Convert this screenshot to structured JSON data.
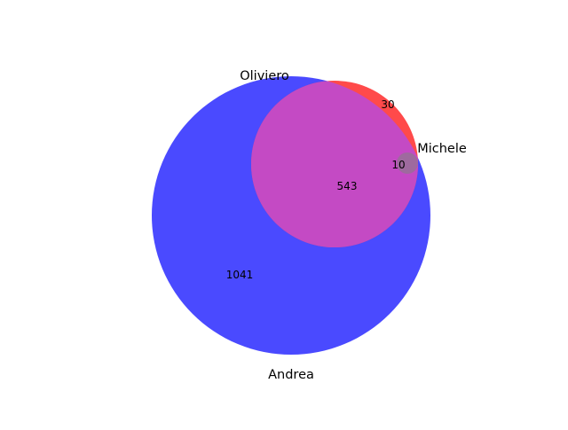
{
  "chart_data": {
    "type": "venn",
    "sets": [
      {
        "name": "Oliviero",
        "color": "#ff0000"
      },
      {
        "name": "Andrea",
        "color": "#0000ff"
      },
      {
        "name": "Michele",
        "color": "#808080"
      }
    ],
    "regions": [
      {
        "sets": [
          "Andrea"
        ],
        "value": 1041
      },
      {
        "sets": [
          "Oliviero",
          "Andrea"
        ],
        "value": 543
      },
      {
        "sets": [
          "Oliviero"
        ],
        "value": 30
      },
      {
        "sets": [
          "Oliviero",
          "Andrea",
          "Michele"
        ],
        "value": 10
      }
    ],
    "colors": {
      "andrea_only": "#4a4aff",
      "oliviero_only": "#ff4a4a",
      "oliviero_andrea": "#c44ac4",
      "all_three": "#9e6a9e"
    }
  }
}
